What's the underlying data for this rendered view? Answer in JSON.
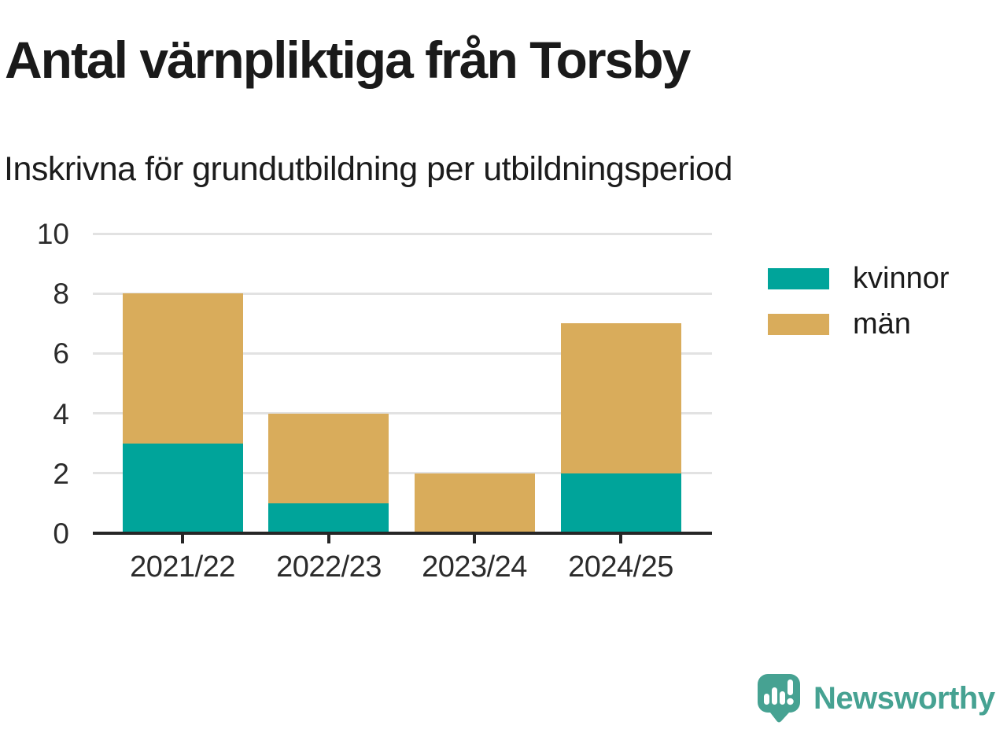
{
  "header": {
    "title": "Antal värnpliktiga från Torsby",
    "subtitle": "Inskrivna för grundutbildning per utbildningsperiod"
  },
  "chart_data": {
    "type": "bar",
    "stacked": true,
    "title": "Antal värnpliktiga från Torsby",
    "subtitle": "Inskrivna för grundutbildning per utbildningsperiod",
    "categories": [
      "2021/22",
      "2022/23",
      "2023/24",
      "2024/25"
    ],
    "series": [
      {
        "name": "kvinnor",
        "color": "#00A49A",
        "values": [
          3,
          1,
          0,
          2
        ]
      },
      {
        "name": "män",
        "color": "#D9AC5B",
        "values": [
          5,
          3,
          2,
          5
        ]
      }
    ],
    "totals": [
      8,
      4,
      2,
      7
    ],
    "xlabel": "",
    "ylabel": "",
    "ylim": [
      0,
      10
    ],
    "yticks": [
      0,
      2,
      4,
      6,
      8,
      10
    ],
    "grid": "horizontal",
    "legend_position": "right-of-plot"
  },
  "legend": {
    "items": [
      {
        "label": "kvinnor",
        "color": "#00A49A"
      },
      {
        "label": "män",
        "color": "#D9AC5B"
      }
    ]
  },
  "footer": {
    "brand": "Newsworthy"
  },
  "colors": {
    "kvinnor": "#00A49A",
    "man": "#D9AC5B",
    "grid": "#E2E2E2",
    "axis": "#262626",
    "tick_label": "#2B2B2B",
    "title": "#1A1A1A",
    "logo": "#46A292"
  }
}
